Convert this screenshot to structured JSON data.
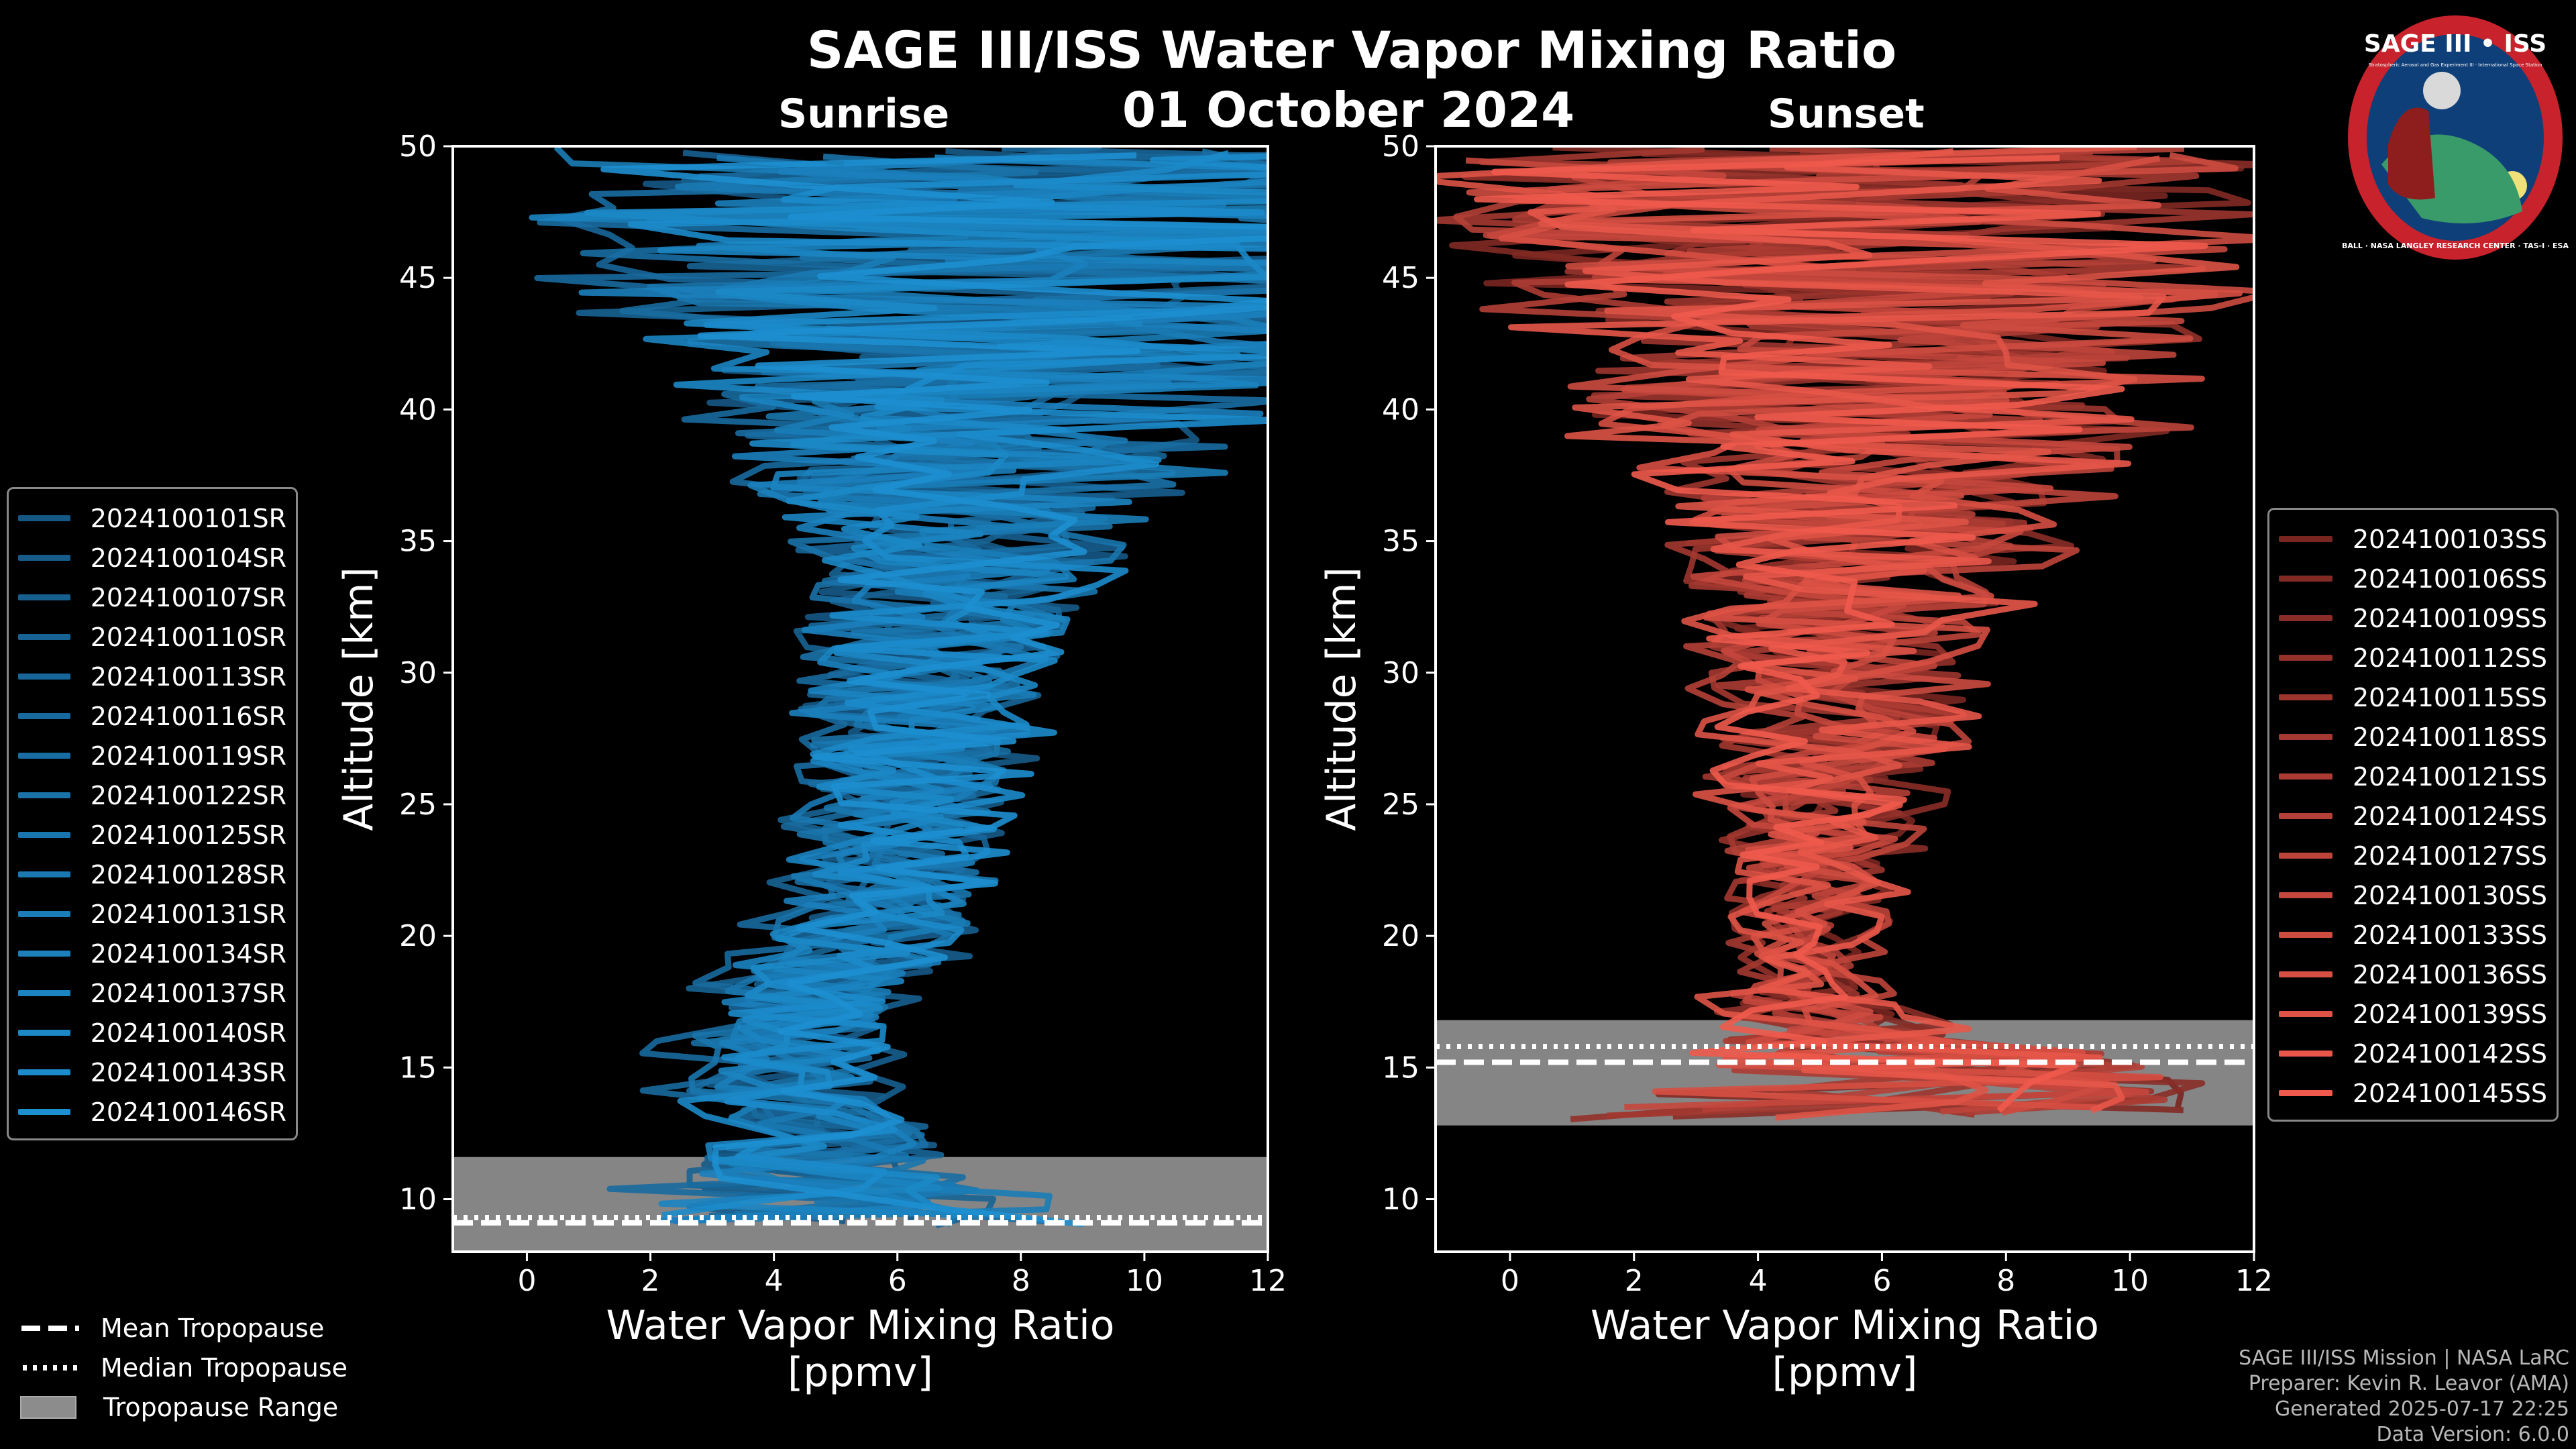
{
  "page": {
    "title": "SAGE III/ISS Water Vapor Mixing Ratio",
    "date": "01 October 2024"
  },
  "logo": {
    "text_top": "SAGE III • ISS",
    "text_small": "Stratospheric Aerosol and Gas Experiment III · International Space Station",
    "text_ring": "BALL · NASA LANGLEY RESEARCH CENTER · TAS-I · ESA",
    "colors": {
      "ring": "#c8222c",
      "inner": "#0f3f78",
      "earth": "#3a9b6a"
    }
  },
  "chart_data": [
    {
      "type": "line",
      "panel_title": "Sunrise",
      "xlabel": "Water Vapor Mixing Ratio\n[ppmv]",
      "xlabel_lines": [
        "Water Vapor Mixing Ratio",
        "[ppmv]"
      ],
      "ylabel": "Altitude [km]",
      "xlim": [
        -1.2,
        12
      ],
      "ylim": [
        8,
        50
      ],
      "xticks": [
        0,
        2,
        4,
        6,
        8,
        10,
        12
      ],
      "yticks": [
        10,
        15,
        20,
        25,
        30,
        35,
        40,
        45,
        50
      ],
      "line_color": "#1d8fd0",
      "dark_color": "#113a5c",
      "tropopause": {
        "mean_km": 9.1,
        "median_km": 9.3,
        "range_km": [
          8.0,
          11.6
        ],
        "mean_line_end_ppmv": 12
      },
      "profile_template": {
        "altitude_km": [
          9,
          12,
          14,
          16,
          18,
          20,
          22,
          25,
          28,
          30,
          33,
          36,
          40,
          45,
          50
        ],
        "median_ppmv": [
          5.0,
          4.5,
          4.0,
          4.0,
          4.6,
          5.3,
          5.7,
          6.0,
          6.2,
          6.3,
          6.7,
          7.0,
          7.8,
          8.0,
          8.0
        ],
        "spread_ppmv": [
          4.0,
          2.2,
          1.6,
          1.6,
          1.6,
          1.6,
          1.6,
          1.7,
          2.0,
          2.0,
          2.4,
          3.0,
          5.0,
          7.5,
          8.5
        ]
      },
      "series": [
        {
          "name": "2024100101SR"
        },
        {
          "name": "2024100104SR"
        },
        {
          "name": "2024100107SR"
        },
        {
          "name": "2024100110SR"
        },
        {
          "name": "2024100113SR"
        },
        {
          "name": "2024100116SR"
        },
        {
          "name": "2024100119SR"
        },
        {
          "name": "2024100122SR"
        },
        {
          "name": "2024100125SR"
        },
        {
          "name": "2024100128SR"
        },
        {
          "name": "2024100131SR"
        },
        {
          "name": "2024100134SR"
        },
        {
          "name": "2024100137SR"
        },
        {
          "name": "2024100140SR"
        },
        {
          "name": "2024100143SR"
        },
        {
          "name": "2024100146SR"
        }
      ]
    },
    {
      "type": "line",
      "panel_title": "Sunset",
      "xlabel": "Water Vapor Mixing Ratio\n[ppmv]",
      "xlabel_lines": [
        "Water Vapor Mixing Ratio",
        "[ppmv]"
      ],
      "ylabel": "Altitude [km]",
      "xlim": [
        -1.2,
        12
      ],
      "ylim": [
        8,
        50
      ],
      "xticks": [
        0,
        2,
        4,
        6,
        8,
        10,
        12
      ],
      "yticks": [
        10,
        15,
        20,
        25,
        30,
        35,
        40,
        45,
        50
      ],
      "line_color": "#ef5a4c",
      "dark_color": "#3a0a0a",
      "tropopause": {
        "mean_km": 15.2,
        "median_km": 15.8,
        "range_km": [
          12.8,
          16.8
        ],
        "mean_line_end_ppmv": 12
      },
      "profile_template": {
        "altitude_km": [
          13,
          14,
          15,
          16,
          17,
          18,
          20,
          22,
          25,
          28,
          30,
          33,
          36,
          40,
          45,
          50
        ],
        "median_ppmv": [
          6.0,
          6.5,
          7.0,
          5.5,
          4.8,
          4.6,
          4.7,
          4.9,
          5.1,
          5.3,
          5.4,
          5.5,
          5.8,
          6.0,
          5.5,
          5.5
        ],
        "spread_ppmv": [
          5.0,
          4.5,
          4.0,
          2.5,
          1.4,
          1.0,
          1.0,
          1.2,
          1.6,
          2.0,
          2.2,
          2.6,
          3.2,
          5.0,
          6.8,
          6.8
        ]
      },
      "series": [
        {
          "name": "2024100103SS"
        },
        {
          "name": "2024100106SS"
        },
        {
          "name": "2024100109SS"
        },
        {
          "name": "2024100112SS"
        },
        {
          "name": "2024100115SS"
        },
        {
          "name": "2024100118SS"
        },
        {
          "name": "2024100121SS"
        },
        {
          "name": "2024100124SS"
        },
        {
          "name": "2024100127SS"
        },
        {
          "name": "2024100130SS"
        },
        {
          "name": "2024100133SS"
        },
        {
          "name": "2024100136SS"
        },
        {
          "name": "2024100139SS"
        },
        {
          "name": "2024100142SS"
        },
        {
          "name": "2024100145SS"
        }
      ]
    }
  ],
  "tropopause_legend": {
    "mean": "Mean Tropopause",
    "median": "Median Tropopause",
    "range": "Tropopause Range",
    "range_color": "#8c8c8c"
  },
  "credits": {
    "line1": "SAGE III/ISS Mission | NASA LaRC",
    "line2": "Preparer: Kevin R. Leavor (AMA)",
    "line3": "Generated 2025-07-17 22:25",
    "line4": "Data Version: 6.0.0"
  }
}
